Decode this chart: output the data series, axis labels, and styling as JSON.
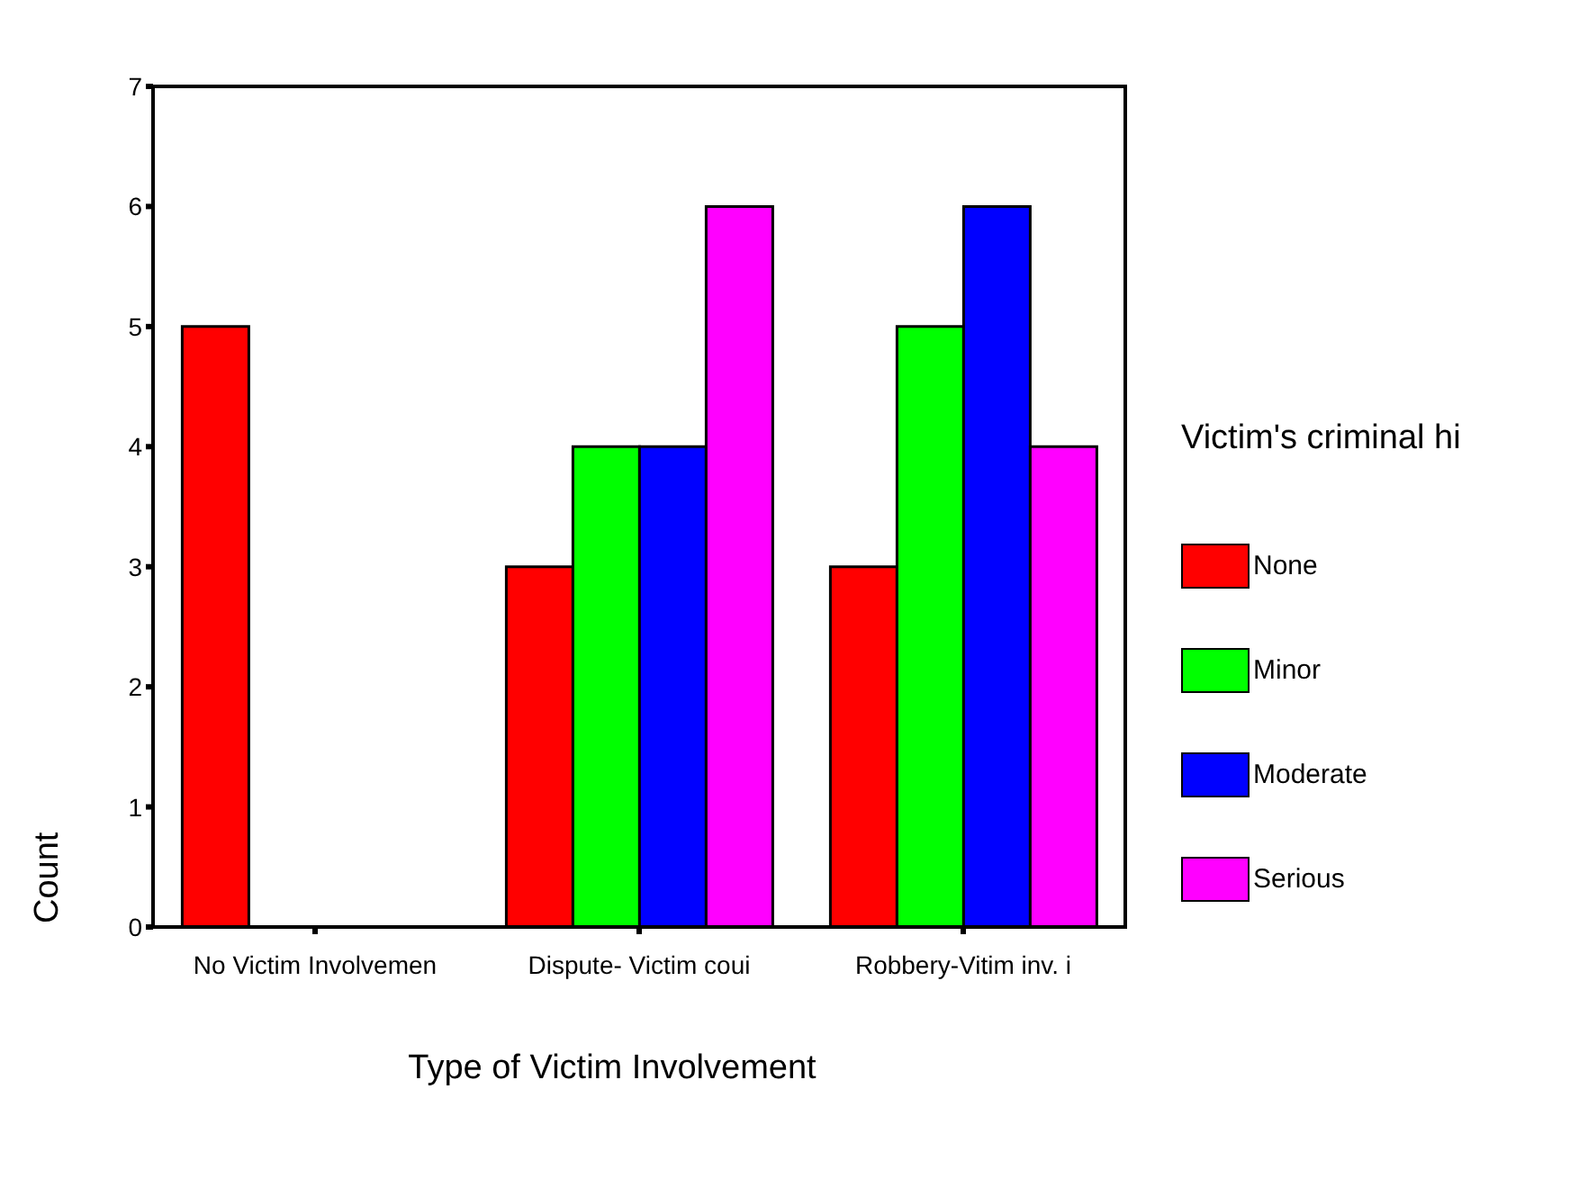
{
  "chart_data": {
    "type": "bar",
    "xlabel": "Type of Victim Involvement",
    "ylabel": "Count",
    "legend_title": "Victim's criminal hi",
    "categories": [
      "No Victim Involvemen",
      "Dispute- Victim coui",
      "Robbery-Vitim inv. i"
    ],
    "series": [
      {
        "name": "None",
        "color": "#ff0000",
        "values": [
          5,
          3,
          3
        ]
      },
      {
        "name": "Minor",
        "color": "#00ff00",
        "values": [
          null,
          4,
          5
        ]
      },
      {
        "name": "Moderate",
        "color": "#0000ff",
        "values": [
          null,
          4,
          6
        ]
      },
      {
        "name": "Serious",
        "color": "#ff00ff",
        "values": [
          null,
          6,
          4
        ]
      }
    ],
    "ylim": [
      0,
      7
    ],
    "yticks": [
      0,
      1,
      2,
      3,
      4,
      5,
      6,
      7
    ],
    "grid": false,
    "legend": "right"
  }
}
